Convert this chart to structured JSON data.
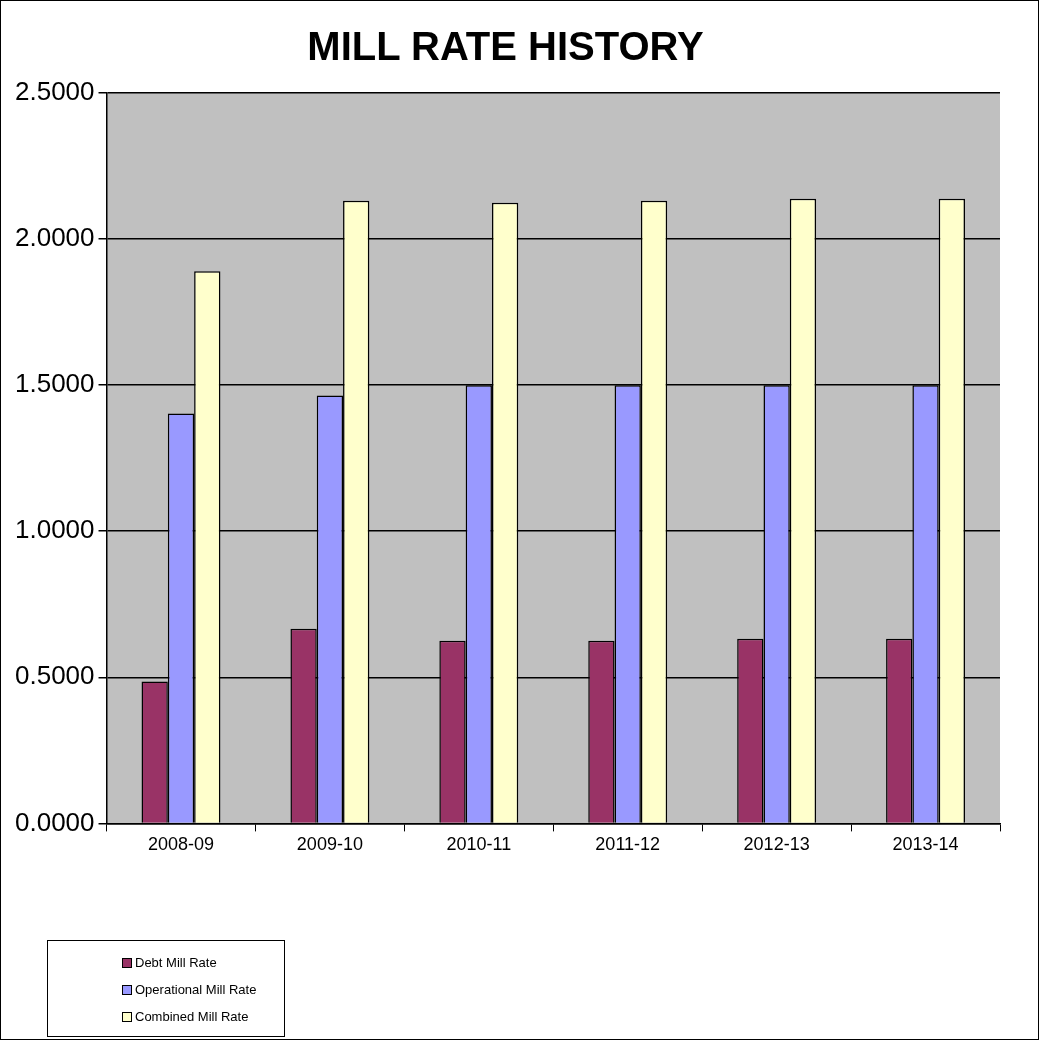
{
  "chart_data": {
    "type": "bar",
    "title": "MILL RATE HISTORY",
    "categories": [
      "2008-09",
      "2009-10",
      "2010-11",
      "2011-12",
      "2012-13",
      "2013-14"
    ],
    "series": [
      {
        "name": "Debt Mill Rate",
        "color": "#993366",
        "values": [
          0.486,
          0.666,
          0.625,
          0.625,
          0.632,
          0.632
        ]
      },
      {
        "name": "Operational Mill Rate",
        "color": "#9999ff",
        "values": [
          1.403,
          1.465,
          1.5,
          1.5,
          1.5,
          1.5
        ]
      },
      {
        "name": "Combined Mill Rate",
        "color": "#ffffcc",
        "values": [
          1.89,
          2.131,
          2.124,
          2.131,
          2.138,
          2.138
        ]
      }
    ],
    "ylim": [
      0,
      2.5
    ],
    "yticks": [
      {
        "value": 0,
        "label": "0.0000"
      },
      {
        "value": 0.5,
        "label": "0.5000"
      },
      {
        "value": 1,
        "label": "1.0000"
      },
      {
        "value": 1.5,
        "label": "1.5000"
      },
      {
        "value": 2,
        "label": "2.0000"
      },
      {
        "value": 2.5,
        "label": "2.5000"
      }
    ],
    "grid": "y",
    "legend": "bottom left"
  }
}
